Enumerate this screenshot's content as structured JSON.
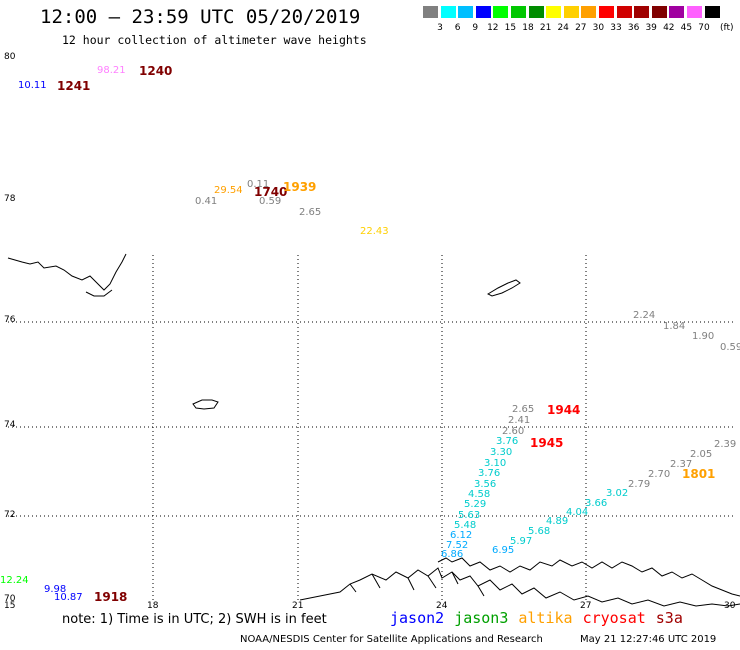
{
  "header": {
    "title": "12:00 – 23:59 UTC 05/20/2019",
    "subtitle": "12 hour collection of altimeter wave heights"
  },
  "legend": {
    "colors": [
      "#808080",
      "#00ffff",
      "#00bfff",
      "#0000ff",
      "#00ff00",
      "#00c800",
      "#008c00",
      "#ffff00",
      "#ffd000",
      "#ffa000",
      "#ff0000",
      "#d00000",
      "#a00000",
      "#800000",
      "#a000a0",
      "#ff60ff",
      "#000000"
    ],
    "labels": [
      "3",
      "6",
      "9",
      "12",
      "15",
      "18",
      "21",
      "24",
      "27",
      "30",
      "33",
      "36",
      "39",
      "42",
      "45",
      "70"
    ],
    "unit": "(ft)"
  },
  "axes": {
    "x_ticks": [
      "15",
      "18",
      "21",
      "24",
      "27",
      "30"
    ],
    "y_ticks": [
      "80",
      "78",
      "76",
      "74",
      "72",
      "70"
    ]
  },
  "observations": [
    {
      "text": "10.11",
      "color": "#0000ff"
    },
    {
      "text": "98.21",
      "color": "#ff80ff"
    },
    {
      "text": "29.54",
      "color": "#ffa000"
    },
    {
      "text": "0.41",
      "color": "#808080"
    },
    {
      "text": "0.59",
      "color": "#808080"
    },
    {
      "text": "2.65",
      "color": "#808080"
    },
    {
      "text": "22.43",
      "color": "#ffd000"
    },
    {
      "text": "0.11",
      "color": "#808080"
    },
    {
      "text": "2.24",
      "color": "#808080"
    },
    {
      "text": "1.84",
      "color": "#808080"
    },
    {
      "text": "1.90",
      "color": "#808080"
    },
    {
      "text": "0.59",
      "color": "#808080"
    },
    {
      "text": "2.65",
      "color": "#808080"
    },
    {
      "text": "2.41",
      "color": "#808080"
    },
    {
      "text": "2.60",
      "color": "#808080"
    },
    {
      "text": "3.76",
      "color": "#00cccc"
    },
    {
      "text": "3.30",
      "color": "#00cccc"
    },
    {
      "text": "3.10",
      "color": "#00cccc"
    },
    {
      "text": "3.76",
      "color": "#00cccc"
    },
    {
      "text": "3.56",
      "color": "#00cccc"
    },
    {
      "text": "4.58",
      "color": "#00cccc"
    },
    {
      "text": "5.29",
      "color": "#00cccc"
    },
    {
      "text": "5.63",
      "color": "#00cccc"
    },
    {
      "text": "5.48",
      "color": "#00cccc"
    },
    {
      "text": "6.12",
      "color": "#00aaff"
    },
    {
      "text": "7.52",
      "color": "#00aaff"
    },
    {
      "text": "6.86",
      "color": "#00aaff"
    },
    {
      "text": "6.95",
      "color": "#00aaff"
    },
    {
      "text": "5.97",
      "color": "#00cccc"
    },
    {
      "text": "5.68",
      "color": "#00cccc"
    },
    {
      "text": "4.89",
      "color": "#00cccc"
    },
    {
      "text": "4.04",
      "color": "#00cccc"
    },
    {
      "text": "3.66",
      "color": "#00cccc"
    },
    {
      "text": "3.02",
      "color": "#00cccc"
    },
    {
      "text": "2.79",
      "color": "#808080"
    },
    {
      "text": "2.70",
      "color": "#808080"
    },
    {
      "text": "2.37",
      "color": "#808080"
    },
    {
      "text": "2.05",
      "color": "#808080"
    },
    {
      "text": "2.39",
      "color": "#808080"
    },
    {
      "text": "12.24",
      "color": "#00ff00"
    },
    {
      "text": "9.98",
      "color": "#0000ff"
    },
    {
      "text": "10.87",
      "color": "#0000ff"
    }
  ],
  "pass_times": [
    {
      "text": "1241",
      "color": "#800000"
    },
    {
      "text": "1240",
      "color": "#800000"
    },
    {
      "text": "1740",
      "color": "#800000"
    },
    {
      "text": "1939",
      "color": "#ffa000"
    },
    {
      "text": "1944",
      "color": "#ff0000"
    },
    {
      "text": "1945",
      "color": "#ff0000"
    },
    {
      "text": "1801",
      "color": "#ffa000"
    },
    {
      "text": "1918",
      "color": "#800000"
    }
  ],
  "footer": {
    "note": "note: 1) Time is in UTC; 2) SWH is in feet",
    "satellites": [
      {
        "name": "jason2",
        "color": "#0000ff"
      },
      {
        "name": "jason3",
        "color": "#00a000"
      },
      {
        "name": "altika",
        "color": "#ffa000"
      },
      {
        "name": "cryosat",
        "color": "#ff0000"
      },
      {
        "name": "s3a",
        "color": "#a00000"
      }
    ],
    "credit": "NOAA/NESDIS Center for Satellite Applications and Research",
    "timestamp": "May 21 12:27:46 UTC 2019"
  }
}
